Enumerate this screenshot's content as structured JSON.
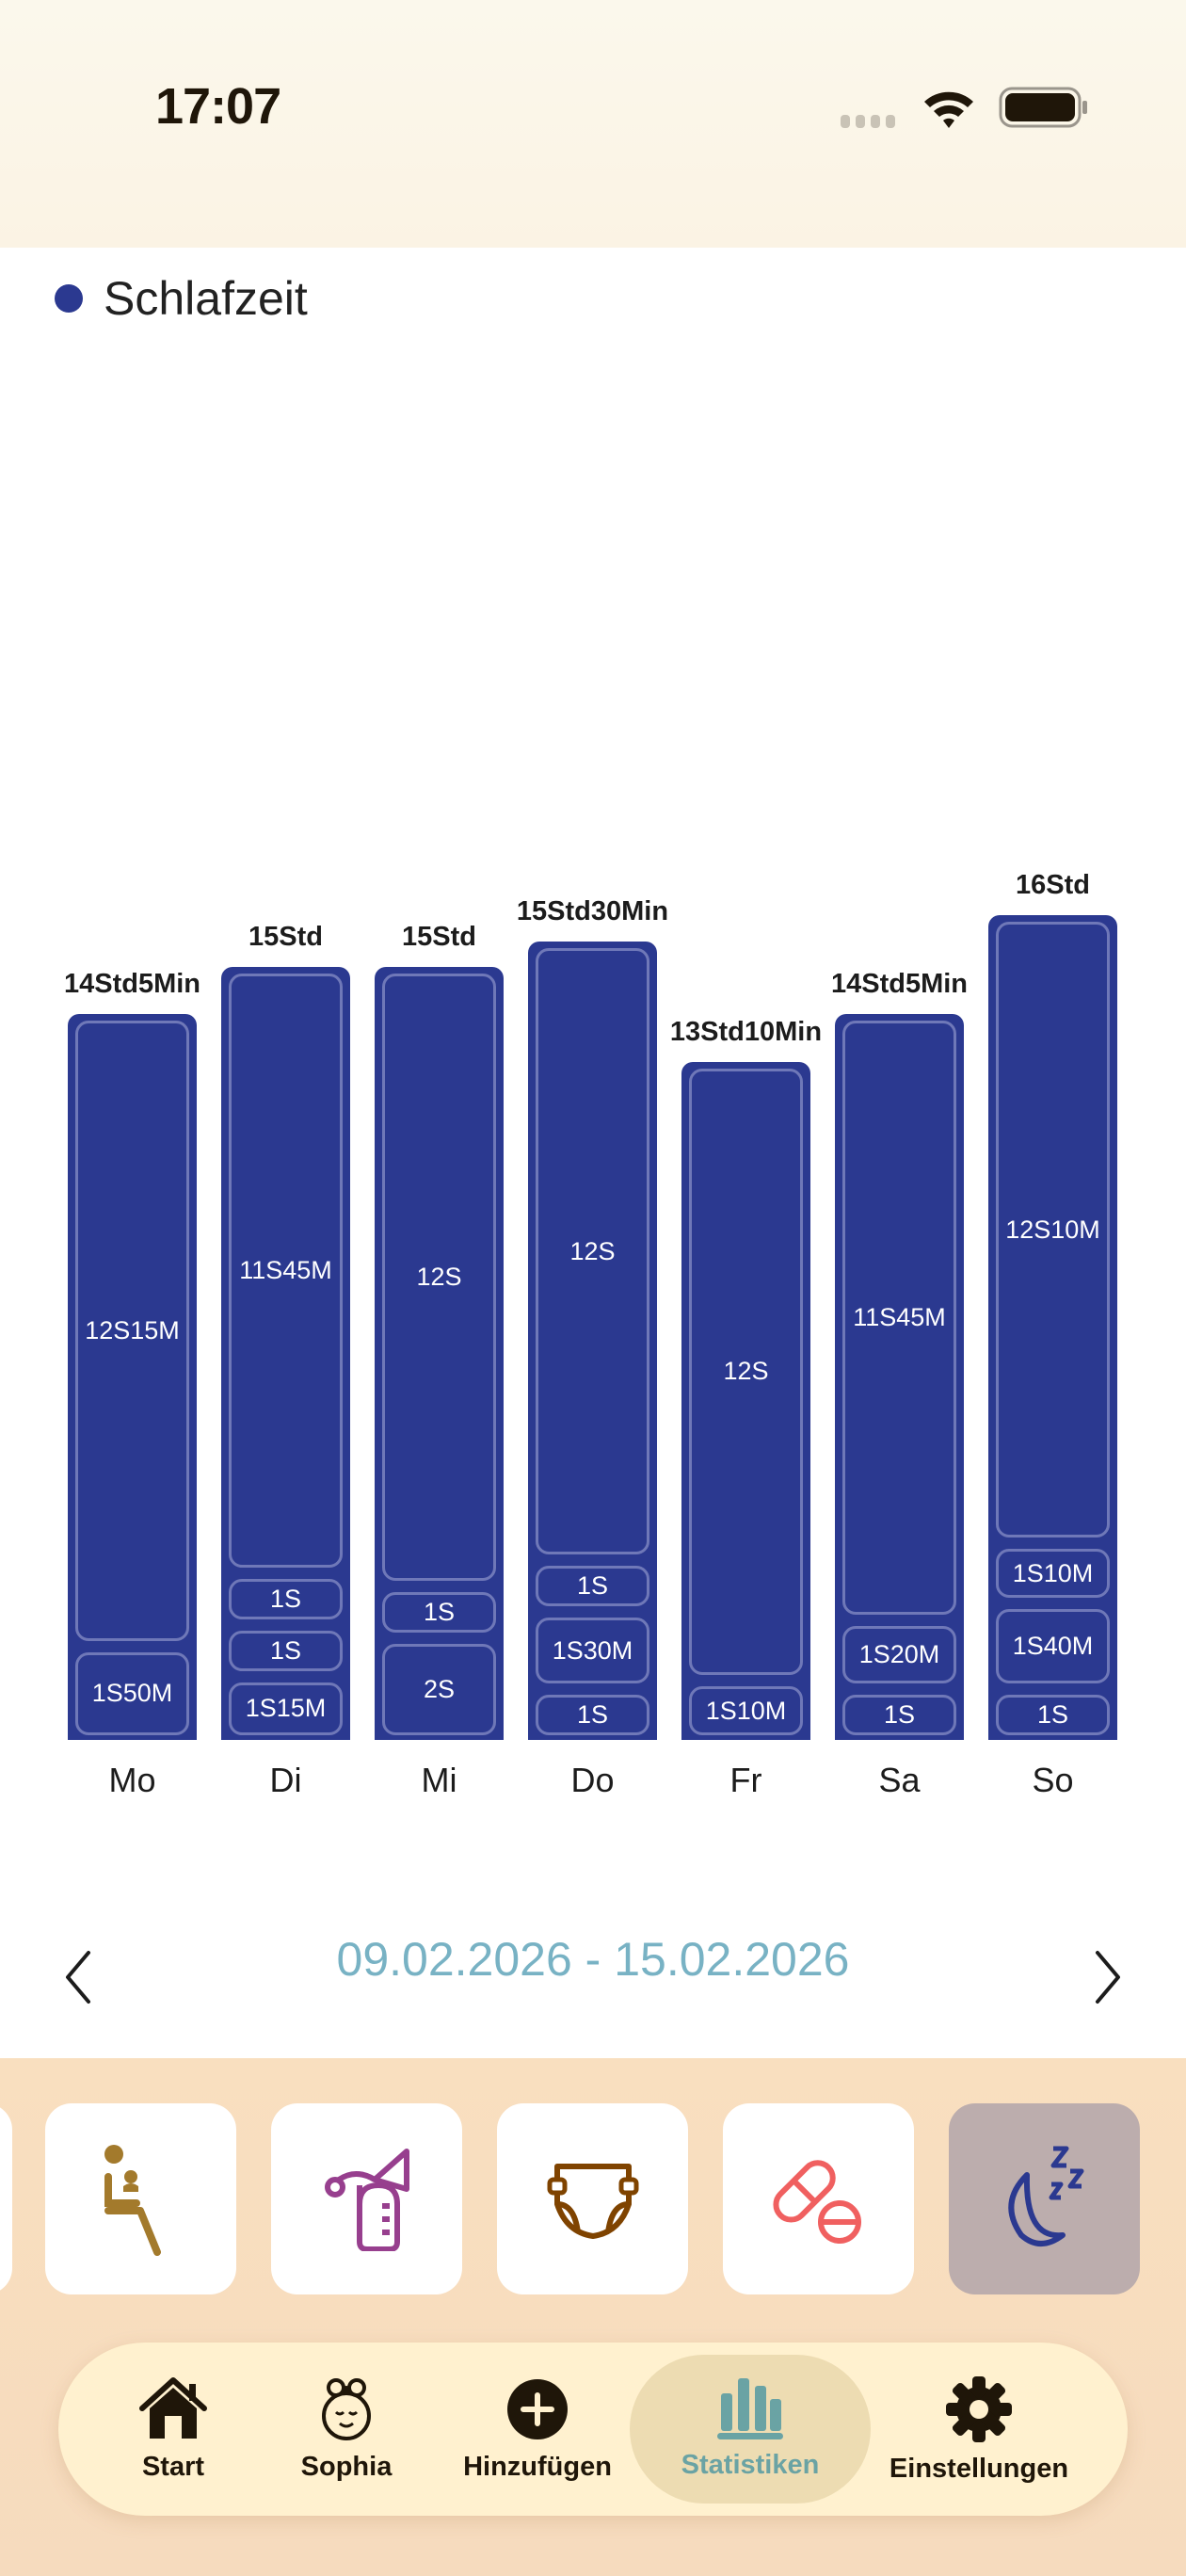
{
  "status_bar": {
    "time": "17:07"
  },
  "legend": {
    "label": "Schlafzeit",
    "color": "#2b3990"
  },
  "chart_data": {
    "type": "bar",
    "stacked": true,
    "title": "",
    "legend": [
      "Schlafzeit"
    ],
    "categories": [
      "Mo",
      "Di",
      "Mi",
      "Do",
      "Fr",
      "Sa",
      "So"
    ],
    "totals_minutes": [
      845,
      900,
      900,
      930,
      790,
      845,
      960
    ],
    "total_labels": [
      "14Std5Min",
      "15Std",
      "15Std",
      "15Std30Min",
      "13Std10Min",
      "14Std5Min",
      "16Std"
    ],
    "segments": [
      [
        {
          "label": "1S50M",
          "minutes": 110
        },
        {
          "label": "12S15M",
          "minutes": 735
        }
      ],
      [
        {
          "label": "1S15M",
          "minutes": 75
        },
        {
          "label": "1S",
          "minutes": 60
        },
        {
          "label": "1S",
          "minutes": 60
        },
        {
          "label": "11S45M",
          "minutes": 705
        }
      ],
      [
        {
          "label": "2S",
          "minutes": 120
        },
        {
          "label": "1S",
          "minutes": 60
        },
        {
          "label": "12S",
          "minutes": 720
        }
      ],
      [
        {
          "label": "1S",
          "minutes": 60
        },
        {
          "label": "1S30M",
          "minutes": 90
        },
        {
          "label": "1S",
          "minutes": 60
        },
        {
          "label": "12S",
          "minutes": 720
        }
      ],
      [
        {
          "label": "1S10M",
          "minutes": 70
        },
        {
          "label": "12S",
          "minutes": 720
        }
      ],
      [
        {
          "label": "1S",
          "minutes": 60
        },
        {
          "label": "1S20M",
          "minutes": 80
        },
        {
          "label": "11S45M",
          "minutes": 705
        }
      ],
      [
        {
          "label": "1S",
          "minutes": 60
        },
        {
          "label": "1S40M",
          "minutes": 100
        },
        {
          "label": "1S10M",
          "minutes": 70
        },
        {
          "label": "12S10M",
          "minutes": 730
        }
      ]
    ],
    "xlabel": "",
    "ylabel": "",
    "grid": false
  },
  "date_nav": {
    "range": "09.02.2026 - 15.02.2026"
  },
  "categories": [
    {
      "name": "feeding",
      "active": false
    },
    {
      "name": "breast-pump",
      "active": false
    },
    {
      "name": "diaper",
      "active": false
    },
    {
      "name": "medicine",
      "active": false
    },
    {
      "name": "sleep",
      "active": true
    }
  ],
  "tabs": [
    {
      "label": "Start"
    },
    {
      "label": "Sophia"
    },
    {
      "label": "Hinzufügen"
    },
    {
      "label": "Statistiken"
    },
    {
      "label": "Einstellungen"
    }
  ]
}
